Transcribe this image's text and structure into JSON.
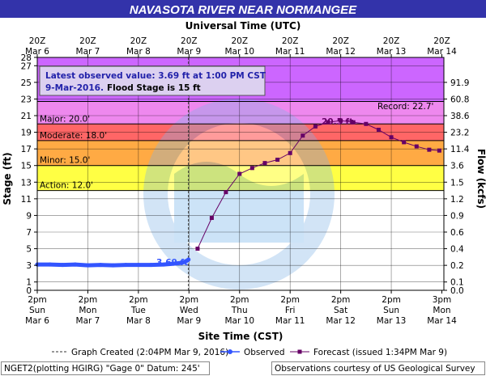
{
  "header": {
    "title": "NAVASOTA RIVER NEAR NORMANGEE",
    "top_axis_title": "Universal Time (UTC)",
    "bottom_axis_title": "Site Time (CST)",
    "y_left_label": "Stage (ft)",
    "y_right_label": "Flow (kcfs)"
  },
  "callout": {
    "line1": "Latest observed value: 3.69 ft at 1:00 PM CST",
    "line2_date": "9-Mar-2016.",
    "line2_flood": "Flood Stage is 15 ft"
  },
  "annotations": {
    "observed_label": "3.69 ft",
    "crest_label": "20.5 ft",
    "record_label": "Record: 22.7'"
  },
  "legend": {
    "graph_created": "Graph Created (2:04PM Mar 9, 2016)",
    "observed": "Observed",
    "forecast": "Forecast (issued 1:34PM Mar 9)"
  },
  "footer": {
    "left": "NGET2(plotting HGIRG) \"Gage 0\" Datum: 245'",
    "right": "Observations courtesy of US Geological Survey"
  },
  "colors": {
    "title_bg": "#3333aa",
    "major": "#cc66ff",
    "major_band": "#ee88ee",
    "moderate": "#ff6666",
    "minor": "#ffaa44",
    "action": "#ffff44",
    "observed": "#3355ff",
    "forecast": "#660066",
    "grid": "#000000"
  },
  "chart_data": {
    "type": "line",
    "ylim": [
      0,
      28
    ],
    "y_ticks": [
      0,
      1,
      3,
      5,
      7,
      9,
      11,
      13,
      15,
      17,
      19,
      21,
      23,
      25,
      27,
      28
    ],
    "y_tick_labels": [
      "0",
      "1",
      "3",
      "5",
      "7",
      "9",
      "11",
      "13",
      "15",
      "17",
      "19",
      "21",
      "23",
      "25",
      "27",
      "28"
    ],
    "flow_ticks": [
      {
        "stage": 0,
        "label": "0.0"
      },
      {
        "stage": 1,
        "label": "0.1"
      },
      {
        "stage": 3,
        "label": "0.2"
      },
      {
        "stage": 5,
        "label": "0.4"
      },
      {
        "stage": 7,
        "label": "0.6"
      },
      {
        "stage": 9,
        "label": "0.9"
      },
      {
        "stage": 11,
        "label": "1.2"
      },
      {
        "stage": 13,
        "label": "1.5"
      },
      {
        "stage": 15,
        "label": "3.6"
      },
      {
        "stage": 17,
        "label": "11.4"
      },
      {
        "stage": 19,
        "label": "23.2"
      },
      {
        "stage": 21,
        "label": "38.6"
      },
      {
        "stage": 23,
        "label": "60.8"
      },
      {
        "stage": 25,
        "label": "91.9"
      }
    ],
    "x_range_days": [
      0,
      8.04
    ],
    "bottom_ticks": [
      {
        "day": 0,
        "l1": "2pm",
        "l2": "Sun",
        "l3": "Mar 6"
      },
      {
        "day": 1,
        "l1": "2pm",
        "l2": "Mon",
        "l3": "Mar 7"
      },
      {
        "day": 2,
        "l1": "2pm",
        "l2": "Tue",
        "l3": "Mar 8"
      },
      {
        "day": 3,
        "l1": "2pm",
        "l2": "Wed",
        "l3": "Mar 9"
      },
      {
        "day": 4,
        "l1": "2pm",
        "l2": "Thu",
        "l3": "Mar 10"
      },
      {
        "day": 5,
        "l1": "2pm",
        "l2": "Fri",
        "l3": "Mar 11"
      },
      {
        "day": 6,
        "l1": "2pm",
        "l2": "Sat",
        "l3": "Mar 12"
      },
      {
        "day": 7,
        "l1": "2pm",
        "l2": "Sun",
        "l3": "Mar 13"
      },
      {
        "day": 8,
        "l1": "3pm",
        "l2": "Mon",
        "l3": "Mar 14"
      }
    ],
    "top_ticks": [
      {
        "day": 0,
        "l1": "20Z",
        "l2": "Mar  6"
      },
      {
        "day": 1,
        "l1": "20Z",
        "l2": "Mar  7"
      },
      {
        "day": 2,
        "l1": "20Z",
        "l2": "Mar  8"
      },
      {
        "day": 3,
        "l1": "20Z",
        "l2": "Mar  9"
      },
      {
        "day": 4,
        "l1": "20Z",
        "l2": "Mar 10"
      },
      {
        "day": 5,
        "l1": "20Z",
        "l2": "Mar 11"
      },
      {
        "day": 6,
        "l1": "20Z",
        "l2": "Mar 12"
      },
      {
        "day": 7,
        "l1": "20Z",
        "l2": "Mar 13"
      },
      {
        "day": 8,
        "l1": "20Z",
        "l2": "Mar 14"
      }
    ],
    "categories": [
      {
        "name": "Major",
        "label": "Major: 20.0'",
        "from": 20,
        "to": 22.7
      },
      {
        "name": "Moderate",
        "label": "Moderate: 18.0'",
        "from": 18,
        "to": 20
      },
      {
        "name": "Minor",
        "label": "Minor: 15.0'",
        "from": 15,
        "to": 18
      },
      {
        "name": "Action",
        "label": "Action: 12.0'",
        "from": 12,
        "to": 15
      }
    ],
    "record_stage": 22.7,
    "graph_created_day": 2.99,
    "series": [
      {
        "name": "Observed",
        "points": [
          [
            0.0,
            3.1
          ],
          [
            0.25,
            3.1
          ],
          [
            0.5,
            3.05
          ],
          [
            0.75,
            3.1
          ],
          [
            1.0,
            3.0
          ],
          [
            1.25,
            3.05
          ],
          [
            1.5,
            3.0
          ],
          [
            1.75,
            3.05
          ],
          [
            2.0,
            3.05
          ],
          [
            2.25,
            3.05
          ],
          [
            2.5,
            3.1
          ],
          [
            2.7,
            3.2
          ],
          [
            2.85,
            3.3
          ],
          [
            2.93,
            3.45
          ],
          [
            2.97,
            3.6
          ],
          [
            2.99,
            3.69
          ]
        ]
      },
      {
        "name": "Forecast",
        "points": [
          [
            3.17,
            5.0
          ],
          [
            3.45,
            8.7
          ],
          [
            3.73,
            11.8
          ],
          [
            4.0,
            14.0
          ],
          [
            4.25,
            14.7
          ],
          [
            4.5,
            15.3
          ],
          [
            4.75,
            15.7
          ],
          [
            5.0,
            16.5
          ],
          [
            5.25,
            18.6
          ],
          [
            5.5,
            19.7
          ],
          [
            5.75,
            20.2
          ],
          [
            6.0,
            20.4
          ],
          [
            6.25,
            20.2
          ],
          [
            6.5,
            20.0
          ],
          [
            6.75,
            19.3
          ],
          [
            7.0,
            18.4
          ],
          [
            7.25,
            17.8
          ],
          [
            7.5,
            17.3
          ],
          [
            7.75,
            16.9
          ],
          [
            7.95,
            16.8
          ]
        ]
      }
    ]
  }
}
